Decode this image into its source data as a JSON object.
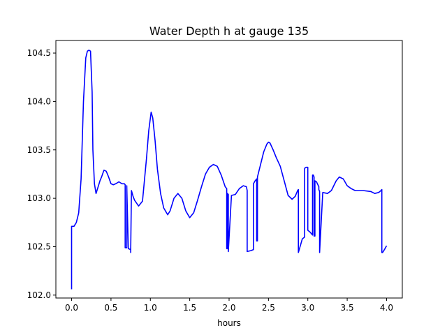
{
  "chart_data": {
    "type": "line",
    "title": "Water Depth h at gauge 135",
    "xlabel": "hours",
    "ylabel": "",
    "xlim": [
      -0.2,
      4.2
    ],
    "ylim": [
      101.97,
      104.63
    ],
    "xticks": [
      {
        "value": 0.0,
        "label": "0.0"
      },
      {
        "value": 0.5,
        "label": "0.5"
      },
      {
        "value": 1.0,
        "label": "1.0"
      },
      {
        "value": 1.5,
        "label": "1.5"
      },
      {
        "value": 2.0,
        "label": "2.0"
      },
      {
        "value": 2.5,
        "label": "2.5"
      },
      {
        "value": 3.0,
        "label": "3.0"
      },
      {
        "value": 3.5,
        "label": "3.5"
      },
      {
        "value": 4.0,
        "label": "4.0"
      }
    ],
    "yticks": [
      {
        "value": 102.0,
        "label": "102.0"
      },
      {
        "value": 102.5,
        "label": "102.5"
      },
      {
        "value": 103.0,
        "label": "103.0"
      },
      {
        "value": 103.5,
        "label": "103.5"
      },
      {
        "value": 104.0,
        "label": "104.0"
      },
      {
        "value": 104.5,
        "label": "104.5"
      }
    ],
    "grid": false,
    "color": "#0000ff",
    "series": [
      {
        "x": [
          0.0,
          0.0,
          0.03,
          0.06,
          0.09,
          0.12,
          0.15,
          0.18,
          0.2,
          0.22,
          0.24,
          0.26,
          0.27,
          0.29,
          0.31,
          0.33,
          0.36,
          0.38,
          0.41,
          0.44,
          0.47,
          0.5,
          0.53,
          0.56,
          0.6,
          0.64,
          0.67,
          0.68,
          0.68,
          0.7,
          0.7,
          0.72,
          0.75,
          0.75,
          0.76,
          0.78,
          0.8,
          0.85,
          0.9,
          0.95,
          0.98,
          1.01,
          1.03,
          1.06,
          1.09,
          1.13,
          1.17,
          1.22,
          1.25,
          1.3,
          1.35,
          1.4,
          1.45,
          1.5,
          1.55,
          1.6,
          1.65,
          1.7,
          1.75,
          1.8,
          1.85,
          1.9,
          1.95,
          1.97,
          1.97,
          1.98,
          1.98,
          1.99,
          1.99,
          2.03,
          2.08,
          2.13,
          2.18,
          2.22,
          2.23,
          2.23,
          2.28,
          2.31,
          2.31,
          2.33,
          2.35,
          2.35,
          2.36,
          2.36,
          2.4,
          2.44,
          2.48,
          2.5,
          2.52,
          2.56,
          2.6,
          2.65,
          2.7,
          2.75,
          2.8,
          2.84,
          2.87,
          2.88,
          2.88,
          2.93,
          2.96,
          2.96,
          2.98,
          3.0,
          3.0,
          3.03,
          3.06,
          3.06,
          3.07,
          3.08,
          3.08,
          3.09,
          3.09,
          3.11,
          3.14,
          3.14,
          3.15,
          3.15,
          3.19,
          3.25,
          3.3,
          3.36,
          3.4,
          3.45,
          3.5,
          3.55,
          3.6,
          3.7,
          3.8,
          3.85,
          3.9,
          3.93,
          3.94,
          3.94,
          3.95,
          3.98,
          4.0
        ],
        "y": [
          102.06,
          102.71,
          102.71,
          102.75,
          102.85,
          103.2,
          104.0,
          104.45,
          104.52,
          104.53,
          104.52,
          104.1,
          103.5,
          103.15,
          103.05,
          103.1,
          103.18,
          103.22,
          103.29,
          103.28,
          103.22,
          103.15,
          103.14,
          103.15,
          103.17,
          103.15,
          103.15,
          103.14,
          102.49,
          102.49,
          103.13,
          102.48,
          102.47,
          102.44,
          103.08,
          103.02,
          102.98,
          102.92,
          102.97,
          103.4,
          103.7,
          103.89,
          103.83,
          103.6,
          103.3,
          103.05,
          102.9,
          102.83,
          102.87,
          103.0,
          103.05,
          103.0,
          102.87,
          102.8,
          102.85,
          102.98,
          103.12,
          103.25,
          103.32,
          103.35,
          103.33,
          103.24,
          103.12,
          103.1,
          102.48,
          102.48,
          103.05,
          103.04,
          102.45,
          103.03,
          103.04,
          103.1,
          103.13,
          103.12,
          103.08,
          102.45,
          102.46,
          102.47,
          103.15,
          103.18,
          103.2,
          102.56,
          102.56,
          103.22,
          103.35,
          103.48,
          103.56,
          103.58,
          103.57,
          103.5,
          103.42,
          103.33,
          103.18,
          103.03,
          102.99,
          103.02,
          103.08,
          103.09,
          102.44,
          102.58,
          102.6,
          103.31,
          103.32,
          103.32,
          102.67,
          102.65,
          102.62,
          103.24,
          103.24,
          103.22,
          102.61,
          102.61,
          103.18,
          103.17,
          103.12,
          103.09,
          103.07,
          102.44,
          103.06,
          103.05,
          103.08,
          103.18,
          103.22,
          103.2,
          103.13,
          103.1,
          103.08,
          103.08,
          103.07,
          103.05,
          103.06,
          103.08,
          103.09,
          102.44,
          102.44,
          102.48,
          102.51
        ]
      }
    ]
  }
}
